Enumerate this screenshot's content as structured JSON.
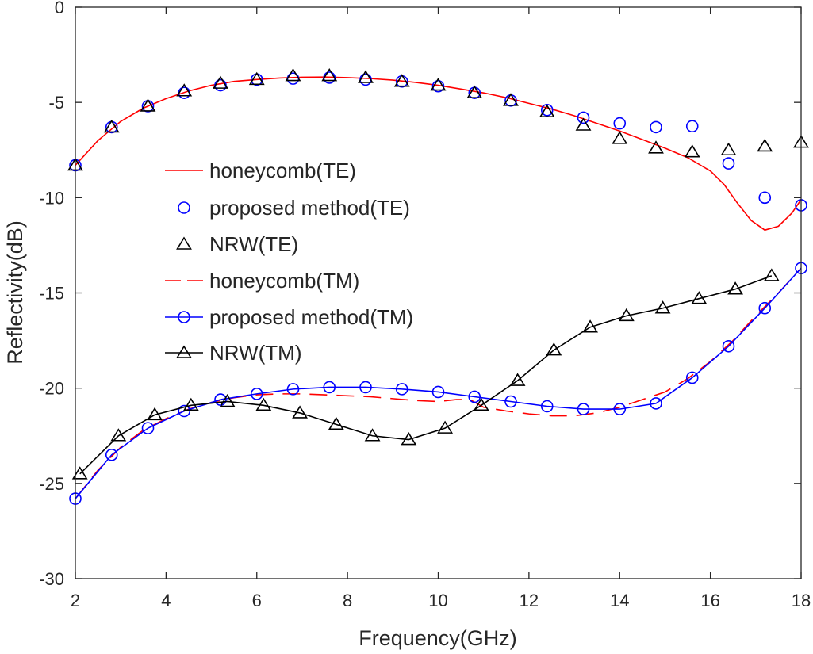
{
  "chart_data": {
    "type": "line",
    "title": "",
    "xlabel": "Frequency(GHz)",
    "ylabel": "Reflectivity(dB)",
    "xlim": [
      2,
      18
    ],
    "ylim": [
      -30,
      0
    ],
    "xticks": [
      2,
      4,
      6,
      8,
      10,
      12,
      14,
      16,
      18
    ],
    "yticks": [
      0,
      -5,
      -10,
      -15,
      -20,
      -25,
      -30
    ],
    "xtick_labels": [
      "2",
      "4",
      "6",
      "8",
      "10",
      "12",
      "14",
      "16",
      "18"
    ],
    "ytick_labels": [
      "0",
      "-5",
      "-10",
      "-15",
      "-20",
      "-25",
      "-30"
    ],
    "grid": false,
    "legend_placement": "center-left",
    "colors": {
      "red": "#ff0000",
      "blue": "#0000ff",
      "black": "#000000"
    },
    "series": [
      {
        "name": "honeycomb(TE)",
        "color": "#ff0000",
        "style": "solid",
        "marker": "none",
        "x": [
          2,
          2.5,
          3,
          3.5,
          4,
          4.5,
          5,
          5.5,
          6,
          6.5,
          7,
          7.5,
          8,
          8.5,
          9,
          9.5,
          10,
          10.5,
          11,
          11.5,
          12,
          12.5,
          13,
          13.5,
          14,
          14.5,
          15,
          15.5,
          16,
          16.3,
          16.6,
          16.9,
          17.2,
          17.5,
          17.8,
          18
        ],
        "y": [
          -8.3,
          -7.0,
          -6.0,
          -5.3,
          -4.8,
          -4.4,
          -4.1,
          -3.9,
          -3.8,
          -3.72,
          -3.68,
          -3.67,
          -3.7,
          -3.75,
          -3.83,
          -3.95,
          -4.1,
          -4.3,
          -4.5,
          -4.75,
          -5.05,
          -5.35,
          -5.7,
          -6.1,
          -6.5,
          -6.95,
          -7.4,
          -7.9,
          -8.6,
          -9.3,
          -10.3,
          -11.2,
          -11.7,
          -11.5,
          -10.8,
          -10.1
        ]
      },
      {
        "name": "proposed method(TE)",
        "color": "#0000ff",
        "style": "none",
        "marker": "circle",
        "x": [
          2,
          2.8,
          3.6,
          4.4,
          5.2,
          6,
          6.8,
          7.6,
          8.4,
          9.2,
          10,
          10.8,
          11.6,
          12.4,
          13.2,
          14,
          14.8,
          15.6,
          16.4,
          17.2,
          18
        ],
        "y": [
          -8.3,
          -6.3,
          -5.2,
          -4.5,
          -4.1,
          -3.8,
          -3.75,
          -3.7,
          -3.8,
          -3.9,
          -4.15,
          -4.5,
          -4.9,
          -5.4,
          -5.8,
          -6.1,
          -6.3,
          -6.25,
          -8.2,
          -10.0,
          -10.4
        ]
      },
      {
        "name": "NRW(TE)",
        "color": "#000000",
        "style": "none",
        "marker": "triangle",
        "x": [
          2,
          2.8,
          3.6,
          4.4,
          5.2,
          6,
          6.8,
          7.6,
          8.4,
          9.2,
          10,
          10.8,
          11.6,
          12.4,
          13.2,
          14,
          14.8,
          15.6,
          16.4,
          17.2,
          18
        ],
        "y": [
          -8.3,
          -6.3,
          -5.2,
          -4.4,
          -4.0,
          -3.8,
          -3.6,
          -3.6,
          -3.7,
          -3.9,
          -4.1,
          -4.5,
          -4.9,
          -5.5,
          -6.2,
          -6.9,
          -7.4,
          -7.6,
          -7.5,
          -7.3,
          -7.1
        ]
      },
      {
        "name": "honeycomb(TM)",
        "color": "#ff0000",
        "style": "dashed",
        "marker": "none",
        "x": [
          2,
          2.5,
          3,
          3.5,
          4,
          4.5,
          5,
          5.5,
          6,
          6.5,
          7,
          7.5,
          8,
          8.5,
          9,
          9.5,
          10,
          10.4,
          10.7,
          11,
          11.5,
          12,
          12.5,
          13,
          13.5,
          14,
          14.5,
          15,
          15.5,
          16,
          16.5,
          17,
          17.5,
          18
        ],
        "y": [
          -25.8,
          -24.3,
          -23.1,
          -22.2,
          -21.6,
          -21.1,
          -20.75,
          -20.5,
          -20.35,
          -20.3,
          -20.3,
          -20.35,
          -20.4,
          -20.45,
          -20.55,
          -20.65,
          -20.7,
          -20.6,
          -20.6,
          -21.0,
          -21.2,
          -21.35,
          -21.45,
          -21.45,
          -21.3,
          -21.0,
          -20.6,
          -20.2,
          -19.5,
          -18.6,
          -17.5,
          -16.2,
          -15.0,
          -13.7
        ]
      },
      {
        "name": "proposed method(TM)",
        "color": "#0000ff",
        "style": "solid",
        "marker": "circle",
        "x": [
          2,
          2.8,
          3.6,
          4.4,
          5.2,
          6,
          6.8,
          7.6,
          8.4,
          9.2,
          10,
          10.8,
          11.6,
          12.4,
          13.2,
          14,
          14.8,
          15.6,
          16.4,
          17.2,
          18
        ],
        "y": [
          -25.8,
          -23.5,
          -22.1,
          -21.2,
          -20.6,
          -20.3,
          -20.05,
          -19.95,
          -19.95,
          -20.05,
          -20.2,
          -20.45,
          -20.7,
          -20.95,
          -21.1,
          -21.1,
          -20.8,
          -19.45,
          -17.8,
          -15.8,
          -13.7
        ]
      },
      {
        "name": "NRW(TM)",
        "color": "#000000",
        "style": "solid",
        "marker": "triangle",
        "x": [
          2.1,
          2.95,
          3.75,
          4.55,
          5.35,
          6.15,
          6.95,
          7.75,
          8.55,
          9.35,
          10.15,
          10.95,
          11.75,
          12.55,
          13.35,
          14.15,
          14.95,
          15.75,
          16.55,
          17.35
        ],
        "y": [
          -24.5,
          -22.5,
          -21.4,
          -20.9,
          -20.7,
          -20.9,
          -21.3,
          -21.9,
          -22.5,
          -22.7,
          -22.1,
          -20.9,
          -19.6,
          -18.0,
          -16.8,
          -16.2,
          -15.8,
          -15.3,
          -14.8,
          -14.1
        ]
      }
    ]
  }
}
